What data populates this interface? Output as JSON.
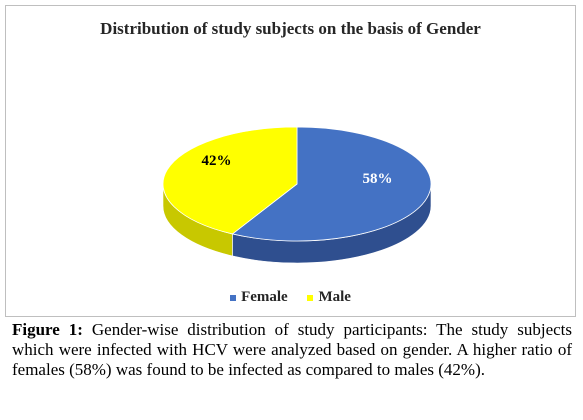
{
  "chart_data": {
    "type": "pie",
    "title": "Distribution of study subjects on the basis of Gender",
    "categories": [
      "Female",
      "Male"
    ],
    "values": [
      58,
      42
    ],
    "data_labels": [
      "58%",
      "42%"
    ],
    "colors": [
      "#4472c4",
      "#ffff00"
    ],
    "legend_position": "bottom"
  },
  "caption": {
    "label": "Figure 1:",
    "text": "Gender-wise distribution of study participants: The study subjects which were infected with HCV were analyzed based on gender. A higher ratio of females (58%) was found to be infected as compared to males (42%)."
  }
}
